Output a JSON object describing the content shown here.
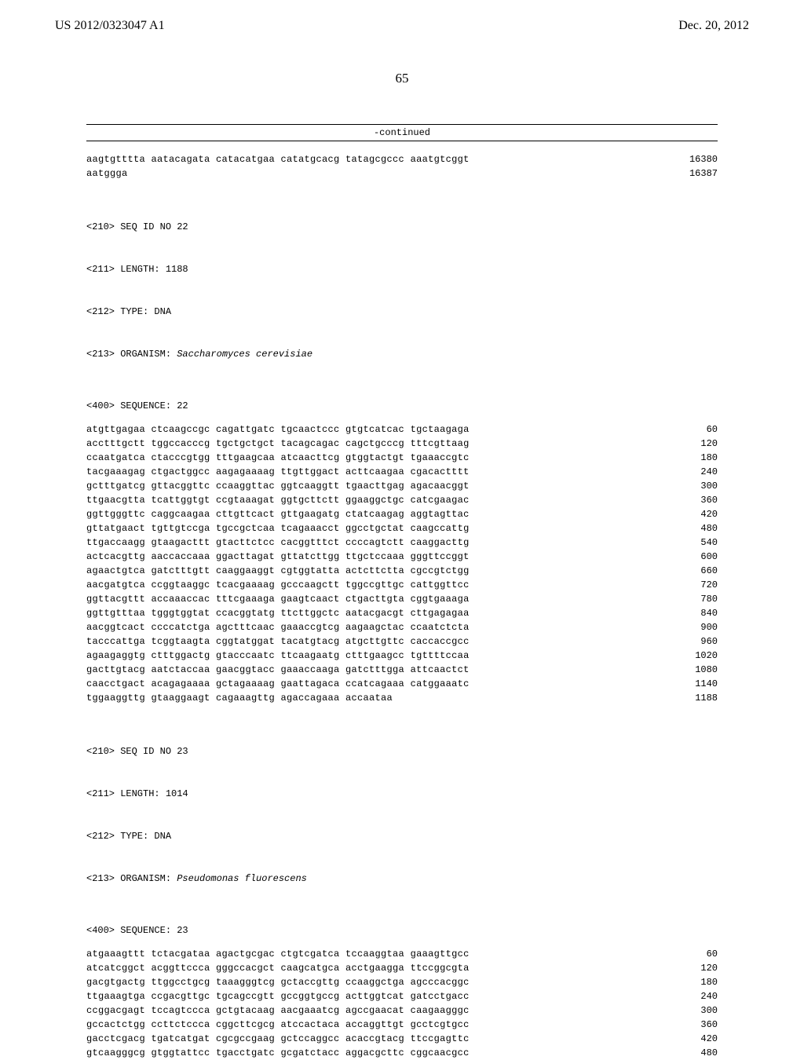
{
  "header": {
    "pub_number": "US 2012/0323047 A1",
    "pub_date": "Dec. 20, 2012"
  },
  "page_number": "65",
  "continued_label": "-continued",
  "seq_top": [
    {
      "text": "aagtgtttta aatacagata catacatgaa catatgcacg tatagcgccc aaatgtcggt",
      "num": "16380"
    },
    {
      "text": "aatggga",
      "num": "16387"
    }
  ],
  "meta22": {
    "l1": "<210> SEQ ID NO 22",
    "l2": "<211> LENGTH: 1188",
    "l3": "<212> TYPE: DNA",
    "l4_prefix": "<213> ORGANISM: ",
    "l4_organism": "Saccharomyces cerevisiae",
    "seq_label": "<400> SEQUENCE: 22"
  },
  "seq22": [
    {
      "text": "atgttgagaa ctcaagccgc cagattgatc tgcaactccc gtgtcatcac tgctaagaga",
      "num": "60"
    },
    {
      "text": "acctttgctt tggccacccg tgctgctgct tacagcagac cagctgcccg tttcgttaag",
      "num": "120"
    },
    {
      "text": "ccaatgatca ctacccgtgg tttgaagcaa atcaacttcg gtggtactgt tgaaaccgtc",
      "num": "180"
    },
    {
      "text": "tacgaaagag ctgactggcc aagagaaaag ttgttggact acttcaagaa cgacactttt",
      "num": "240"
    },
    {
      "text": "gctttgatcg gttacggttc ccaaggttac ggtcaaggtt tgaacttgag agacaacggt",
      "num": "300"
    },
    {
      "text": "ttgaacgtta tcattggtgt ccgtaaagat ggtgcttctt ggaaggctgc catcgaagac",
      "num": "360"
    },
    {
      "text": "ggttgggttc caggcaagaa cttgttcact gttgaagatg ctatcaagag aggtagttac",
      "num": "420"
    },
    {
      "text": "gttatgaact tgttgtccga tgccgctcaa tcagaaacct ggcctgctat caagccattg",
      "num": "480"
    },
    {
      "text": "ttgaccaagg gtaagacttt gtacttctcc cacggtttct ccccagtctt caaggacttg",
      "num": "540"
    },
    {
      "text": "actcacgttg aaccaccaaa ggacttagat gttatcttgg ttgctccaaa gggttccggt",
      "num": "600"
    },
    {
      "text": "agaactgtca gatctttgtt caaggaaggt cgtggtatta actcttctta cgccgtctgg",
      "num": "660"
    },
    {
      "text": "aacgatgtca ccggtaaggc tcacgaaaag gcccaagctt tggccgttgc cattggttcc",
      "num": "720"
    },
    {
      "text": "ggttacgttt accaaaccac tttcgaaaga gaagtcaact ctgacttgta cggtgaaaga",
      "num": "780"
    },
    {
      "text": "ggttgtttaa tgggtggtat ccacggtatg ttcttggctc aatacgacgt cttgagagaa",
      "num": "840"
    },
    {
      "text": "aacggtcact ccccatctga agctttcaac gaaaccgtcg aagaagctac ccaatctcta",
      "num": "900"
    },
    {
      "text": "tacccattga tcggtaagta cggtatggat tacatgtacg atgcttgttc caccaccgcc",
      "num": "960"
    },
    {
      "text": "agaagaggtg ctttggactg gtacccaatc ttcaagaatg ctttgaagcc tgttttccaa",
      "num": "1020"
    },
    {
      "text": "gacttgtacg aatctaccaa gaacggtacc gaaaccaaga gatctttgga attcaactct",
      "num": "1080"
    },
    {
      "text": "caacctgact acagagaaaa gctagaaaag gaattagaca ccatcagaaa catggaaatc",
      "num": "1140"
    },
    {
      "text": "tggaaggttg gtaaggaagt cagaaagttg agaccagaaa accaataa",
      "num": "1188"
    }
  ],
  "meta23": {
    "l1": "<210> SEQ ID NO 23",
    "l2": "<211> LENGTH: 1014",
    "l3": "<212> TYPE: DNA",
    "l4_prefix": "<213> ORGANISM: ",
    "l4_organism": "Pseudomonas fluorescens",
    "seq_label": "<400> SEQUENCE: 23"
  },
  "seq23": [
    {
      "text": "atgaaagttt tctacgataa agactgcgac ctgtcgatca tccaaggtaa gaaagttgcc",
      "num": "60"
    },
    {
      "text": "atcatcggct acggttccca gggccacgct caagcatgca acctgaagga ttccggcgta",
      "num": "120"
    },
    {
      "text": "gacgtgactg ttggcctgcg taaagggtcg gctaccgttg ccaaggctga agcccacggc",
      "num": "180"
    },
    {
      "text": "ttgaaagtga ccgacgttgc tgcagccgtt gccggtgccg acttggtcat gatcctgacc",
      "num": "240"
    },
    {
      "text": "ccggacgagt tccagtccca gctgtacaag aacgaaatcg agccgaacat caagaagggc",
      "num": "300"
    },
    {
      "text": "gccactctgg ccttctccca cggcttcgcg atccactaca accaggttgt gcctcgtgcc",
      "num": "360"
    },
    {
      "text": "gacctcgacg tgatcatgat cgcgccgaag gctccaggcc acaccgtacg ttccgagttc",
      "num": "420"
    },
    {
      "text": "gtcaagggcg gtggtattcc tgacctgatc gcgatctacc aggacgcttc cggcaacgcc",
      "num": "480"
    }
  ]
}
